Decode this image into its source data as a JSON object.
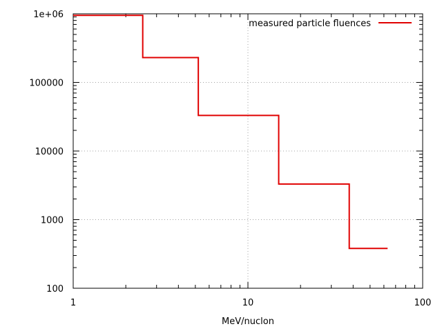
{
  "chart_data": {
    "type": "line",
    "title": "",
    "xlabel": "MeV/nuclon",
    "ylabel": "",
    "x_scale": "log",
    "y_scale": "log",
    "xlim": [
      1,
      100
    ],
    "ylim": [
      100,
      1000000
    ],
    "grid": true,
    "legend_position": "top-right",
    "x_tick_labels": [
      "1",
      "10",
      "100"
    ],
    "y_tick_labels": [
      "100",
      "1000",
      "10000",
      "100000",
      "1e+06"
    ],
    "series": [
      {
        "name": "measured particle fluences",
        "color": "#e00000",
        "step": "post",
        "x": [
          1.0,
          2.5,
          5.2,
          15.0,
          38.0,
          63.0
        ],
        "y": [
          950000,
          230000,
          33000,
          3300,
          380,
          380
        ]
      }
    ]
  }
}
